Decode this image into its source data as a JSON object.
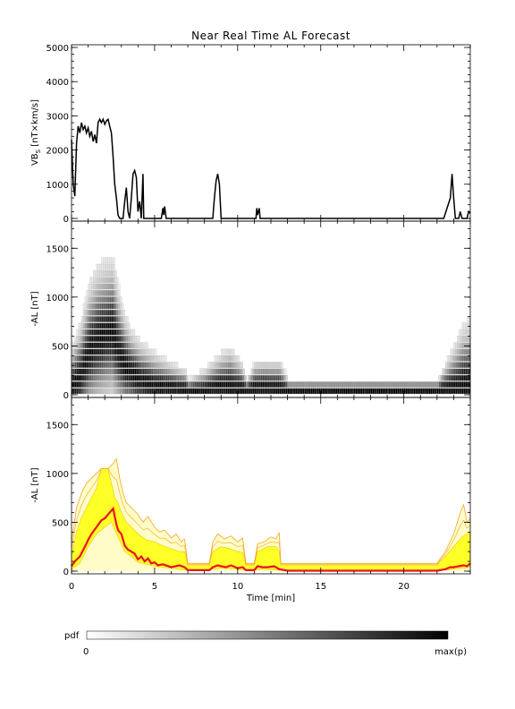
{
  "title": "Near Real Time AL Forecast",
  "x_axis": {
    "label": "Time [min]",
    "ticks": [
      "0",
      "5",
      "10",
      "15",
      "20"
    ],
    "range": [
      0,
      24
    ]
  },
  "colorbar": {
    "label": "pdf",
    "min_label": "0",
    "max_label": "max(p)"
  },
  "chart_data": [
    {
      "type": "line",
      "ylabel_main": "VB",
      "ylabel_sub": "S",
      "ylabel_rest": " [nT×km/s]",
      "ylim": [
        0,
        5000
      ],
      "yticks": [
        "0",
        "1000",
        "2000",
        "3000",
        "4000",
        "5000"
      ],
      "series": [
        {
          "color": "#000000",
          "points": [
            [
              0,
              2300
            ],
            [
              0.1,
              1000
            ],
            [
              0.2,
              650
            ],
            [
              0.3,
              2200
            ],
            [
              0.4,
              2700
            ],
            [
              0.5,
              2500
            ],
            [
              0.6,
              2800
            ],
            [
              0.7,
              2600
            ],
            [
              0.8,
              2700
            ],
            [
              0.9,
              2500
            ],
            [
              1.0,
              2650
            ],
            [
              1.1,
              2400
            ],
            [
              1.2,
              2550
            ],
            [
              1.3,
              2250
            ],
            [
              1.4,
              2450
            ],
            [
              1.5,
              2200
            ],
            [
              1.6,
              2800
            ],
            [
              1.7,
              2900
            ],
            [
              1.8,
              2800
            ],
            [
              1.9,
              2900
            ],
            [
              2.0,
              2750
            ],
            [
              2.1,
              2850
            ],
            [
              2.2,
              2900
            ],
            [
              2.3,
              2700
            ],
            [
              2.4,
              2500
            ],
            [
              2.5,
              1800
            ],
            [
              2.6,
              1000
            ],
            [
              2.7,
              600
            ],
            [
              2.8,
              100
            ],
            [
              2.9,
              0
            ],
            [
              3.1,
              0
            ],
            [
              3.2,
              500
            ],
            [
              3.3,
              900
            ],
            [
              3.4,
              200
            ],
            [
              3.5,
              0
            ],
            [
              3.6,
              600
            ],
            [
              3.7,
              1300
            ],
            [
              3.8,
              1400
            ],
            [
              3.9,
              1200
            ],
            [
              4.0,
              200
            ],
            [
              4.1,
              500
            ],
            [
              4.2,
              0
            ],
            [
              4.3,
              1300
            ],
            [
              4.35,
              0
            ],
            [
              5.4,
              0
            ],
            [
              5.5,
              300
            ],
            [
              5.55,
              100
            ],
            [
              5.6,
              350
            ],
            [
              5.7,
              0
            ],
            [
              8.5,
              0
            ],
            [
              8.6,
              600
            ],
            [
              8.7,
              1100
            ],
            [
              8.8,
              1300
            ],
            [
              8.9,
              1000
            ],
            [
              9.0,
              0
            ],
            [
              11.1,
              0
            ],
            [
              11.15,
              300
            ],
            [
              11.2,
              100
            ],
            [
              11.3,
              300
            ],
            [
              11.35,
              0
            ],
            [
              22.4,
              0
            ],
            [
              22.6,
              300
            ],
            [
              22.8,
              600
            ],
            [
              22.9,
              1300
            ],
            [
              23.0,
              600
            ],
            [
              23.1,
              0
            ],
            [
              23.3,
              0
            ],
            [
              23.4,
              200
            ],
            [
              23.5,
              0
            ],
            [
              23.8,
              0
            ],
            [
              23.9,
              200
            ],
            [
              24.0,
              150
            ]
          ]
        }
      ]
    },
    {
      "type": "heatmap",
      "ylabel": "-AL [nT]",
      "ylim": [
        0,
        1750
      ],
      "yticks": [
        "0",
        "500",
        "1000",
        "1500"
      ],
      "median": [
        [
          0,
          50
        ],
        [
          0.5,
          150
        ],
        [
          1.0,
          400
        ],
        [
          1.5,
          520
        ],
        [
          2.0,
          580
        ],
        [
          2.4,
          620
        ],
        [
          2.8,
          400
        ],
        [
          3.2,
          250
        ],
        [
          3.6,
          180
        ],
        [
          4.0,
          120
        ],
        [
          4.5,
          80
        ],
        [
          5.0,
          50
        ],
        [
          6.0,
          40
        ],
        [
          7.0,
          10
        ],
        [
          8.0,
          10
        ],
        [
          8.5,
          40
        ],
        [
          9.0,
          50
        ],
        [
          9.5,
          40
        ],
        [
          10.0,
          30
        ],
        [
          10.5,
          10
        ],
        [
          11.0,
          30
        ],
        [
          11.5,
          40
        ],
        [
          12.0,
          30
        ],
        [
          12.5,
          20
        ],
        [
          13.0,
          5
        ],
        [
          22.0,
          5
        ],
        [
          22.5,
          20
        ],
        [
          23.0,
          30
        ],
        [
          23.5,
          50
        ],
        [
          24.0,
          60
        ]
      ],
      "spread": [
        [
          0,
          300
        ],
        [
          0.5,
          400
        ],
        [
          1.0,
          500
        ],
        [
          1.5,
          550
        ],
        [
          2.0,
          550
        ],
        [
          2.5,
          550
        ],
        [
          3.0,
          420
        ],
        [
          3.5,
          330
        ],
        [
          4.0,
          300
        ],
        [
          5.0,
          250
        ],
        [
          6.0,
          180
        ],
        [
          6.8,
          150
        ],
        [
          7.0,
          80
        ],
        [
          8.5,
          200
        ],
        [
          9.5,
          300
        ],
        [
          10.2,
          200
        ],
        [
          10.5,
          80
        ],
        [
          11.0,
          200
        ],
        [
          12.5,
          220
        ],
        [
          13.0,
          80
        ],
        [
          22.0,
          80
        ],
        [
          22.5,
          200
        ],
        [
          23.5,
          450
        ],
        [
          24.0,
          500
        ]
      ]
    },
    {
      "type": "area",
      "ylabel": "-AL [nT]",
      "ylim": [
        0,
        1750
      ],
      "yticks": [
        "0",
        "500",
        "1000",
        "1500"
      ],
      "series": [
        {
          "name": "median",
          "color": "#e8141e",
          "points": [
            [
              0,
              50
            ],
            [
              0.2,
              100
            ],
            [
              0.5,
              150
            ],
            [
              0.8,
              250
            ],
            [
              1.0,
              320
            ],
            [
              1.2,
              380
            ],
            [
              1.5,
              450
            ],
            [
              1.8,
              520
            ],
            [
              2.0,
              540
            ],
            [
              2.2,
              580
            ],
            [
              2.4,
              620
            ],
            [
              2.5,
              640
            ],
            [
              2.6,
              560
            ],
            [
              2.7,
              480
            ],
            [
              2.8,
              420
            ],
            [
              3.0,
              380
            ],
            [
              3.2,
              260
            ],
            [
              3.4,
              220
            ],
            [
              3.6,
              200
            ],
            [
              3.8,
              180
            ],
            [
              4.0,
              120
            ],
            [
              4.2,
              150
            ],
            [
              4.4,
              100
            ],
            [
              4.6,
              130
            ],
            [
              4.8,
              80
            ],
            [
              5.0,
              90
            ],
            [
              5.2,
              60
            ],
            [
              5.5,
              70
            ],
            [
              6.0,
              40
            ],
            [
              6.5,
              60
            ],
            [
              6.8,
              40
            ],
            [
              7.0,
              10
            ],
            [
              8.3,
              10
            ],
            [
              8.5,
              40
            ],
            [
              8.8,
              60
            ],
            [
              9.0,
              50
            ],
            [
              9.3,
              40
            ],
            [
              9.6,
              60
            ],
            [
              10.0,
              30
            ],
            [
              10.3,
              40
            ],
            [
              10.5,
              10
            ],
            [
              11.0,
              10
            ],
            [
              11.2,
              50
            ],
            [
              11.5,
              40
            ],
            [
              11.8,
              40
            ],
            [
              12.2,
              50
            ],
            [
              12.5,
              20
            ],
            [
              13.0,
              5
            ],
            [
              22.0,
              5
            ],
            [
              22.5,
              20
            ],
            [
              22.8,
              40
            ],
            [
              23.0,
              40
            ],
            [
              23.3,
              50
            ],
            [
              23.6,
              60
            ],
            [
              23.8,
              50
            ],
            [
              24.0,
              80
            ]
          ]
        },
        {
          "name": "band",
          "color": "#ffff28",
          "upper": [
            [
              0,
              150
            ],
            [
              0.3,
              400
            ],
            [
              0.6,
              550
            ],
            [
              0.9,
              650
            ],
            [
              1.2,
              750
            ],
            [
              1.5,
              850
            ],
            [
              1.8,
              1050
            ],
            [
              2.2,
              1050
            ],
            [
              2.4,
              900
            ],
            [
              2.6,
              750
            ],
            [
              2.8,
              700
            ],
            [
              3.0,
              600
            ],
            [
              3.3,
              500
            ],
            [
              3.6,
              450
            ],
            [
              4.0,
              380
            ],
            [
              4.5,
              320
            ],
            [
              5.0,
              300
            ],
            [
              5.5,
              260
            ],
            [
              6.0,
              230
            ],
            [
              6.5,
              200
            ],
            [
              6.8,
              200
            ],
            [
              7.0,
              60
            ],
            [
              8.3,
              60
            ],
            [
              8.5,
              200
            ],
            [
              9.0,
              250
            ],
            [
              9.5,
              230
            ],
            [
              10.0,
              200
            ],
            [
              10.3,
              190
            ],
            [
              10.5,
              60
            ],
            [
              11.0,
              60
            ],
            [
              11.2,
              200
            ],
            [
              11.8,
              250
            ],
            [
              12.3,
              250
            ],
            [
              12.5,
              200
            ],
            [
              12.6,
              60
            ],
            [
              22.0,
              60
            ],
            [
              22.5,
              150
            ],
            [
              23.0,
              250
            ],
            [
              23.5,
              350
            ],
            [
              24.0,
              400
            ]
          ],
          "lower": [
            [
              0,
              20
            ],
            [
              0.5,
              80
            ],
            [
              1.0,
              250
            ],
            [
              1.5,
              380
            ],
            [
              2.0,
              450
            ],
            [
              2.4,
              500
            ],
            [
              2.8,
              350
            ],
            [
              3.2,
              200
            ],
            [
              3.6,
              150
            ],
            [
              4.0,
              90
            ],
            [
              5.0,
              50
            ],
            [
              6.0,
              30
            ],
            [
              7.0,
              5
            ],
            [
              8.5,
              20
            ],
            [
              9.0,
              30
            ],
            [
              10.0,
              20
            ],
            [
              10.5,
              5
            ],
            [
              11.5,
              20
            ],
            [
              12.5,
              10
            ],
            [
              13.0,
              2
            ],
            [
              22.0,
              2
            ],
            [
              23.0,
              20
            ],
            [
              24.0,
              40
            ]
          ]
        },
        {
          "name": "upper",
          "color": "#f5a623",
          "points": [
            [
              0,
              300
            ],
            [
              0.3,
              650
            ],
            [
              0.6,
              800
            ],
            [
              0.9,
              900
            ],
            [
              1.2,
              950
            ],
            [
              1.5,
              1000
            ],
            [
              1.8,
              1050
            ],
            [
              2.2,
              1050
            ],
            [
              2.5,
              1100
            ],
            [
              2.7,
              1150
            ],
            [
              2.9,
              950
            ],
            [
              3.1,
              800
            ],
            [
              3.3,
              700
            ],
            [
              3.6,
              650
            ],
            [
              4.0,
              580
            ],
            [
              4.3,
              500
            ],
            [
              4.6,
              560
            ],
            [
              5.0,
              450
            ],
            [
              5.3,
              400
            ],
            [
              5.6,
              420
            ],
            [
              6.0,
              340
            ],
            [
              6.3,
              380
            ],
            [
              6.6,
              300
            ],
            [
              6.8,
              330
            ],
            [
              7.0,
              80
            ],
            [
              8.3,
              80
            ],
            [
              8.5,
              300
            ],
            [
              8.8,
              380
            ],
            [
              9.2,
              330
            ],
            [
              9.6,
              360
            ],
            [
              10.0,
              300
            ],
            [
              10.3,
              340
            ],
            [
              10.5,
              80
            ],
            [
              11.0,
              80
            ],
            [
              11.2,
              280
            ],
            [
              11.6,
              300
            ],
            [
              12.0,
              350
            ],
            [
              12.3,
              330
            ],
            [
              12.5,
              390
            ],
            [
              12.6,
              80
            ],
            [
              22.0,
              80
            ],
            [
              22.5,
              200
            ],
            [
              23.0,
              380
            ],
            [
              23.4,
              600
            ],
            [
              23.6,
              680
            ],
            [
              23.8,
              500
            ],
            [
              24.0,
              540
            ]
          ]
        }
      ]
    }
  ]
}
